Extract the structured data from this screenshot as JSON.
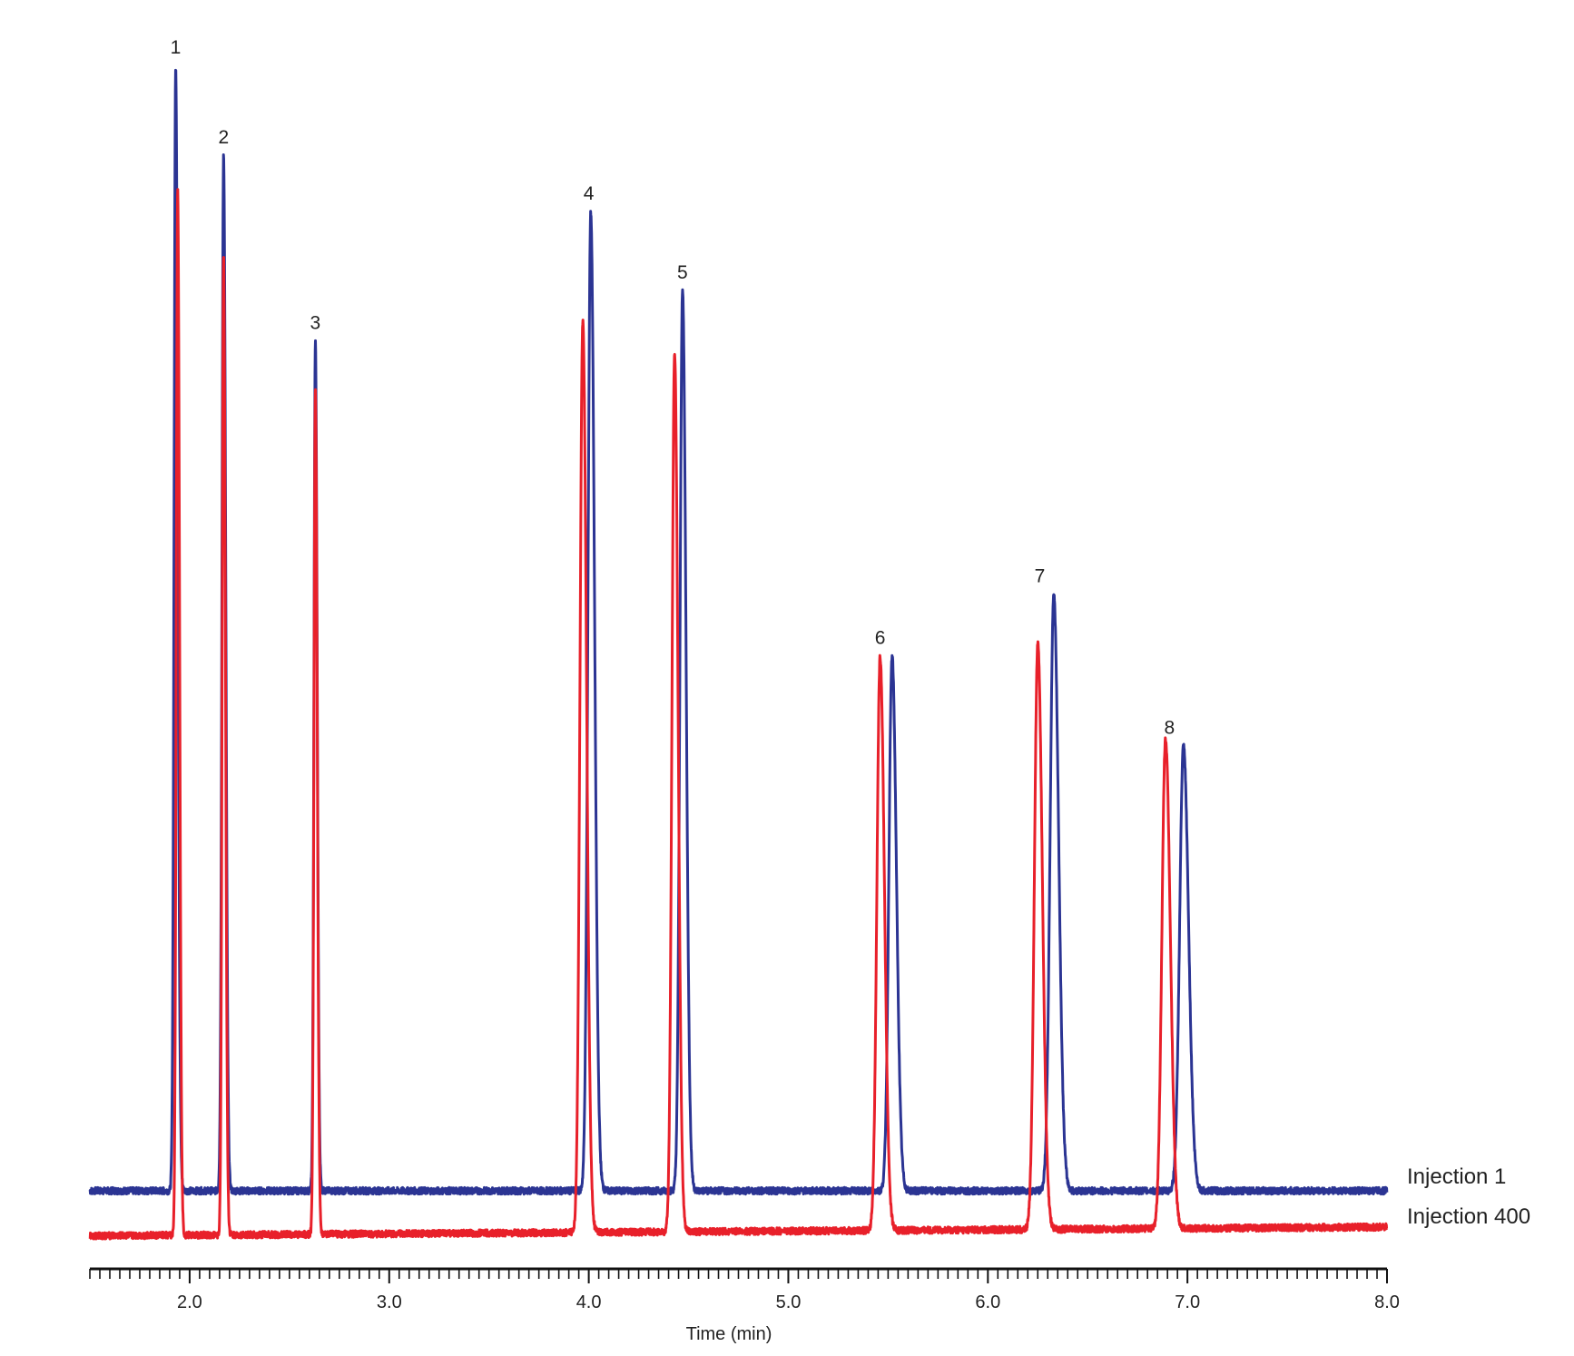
{
  "chart_data": {
    "type": "line",
    "xlabel": "Time (min)",
    "ylabel": "",
    "xlim": [
      1.5,
      8.0
    ],
    "x_ticks": [
      "2.0",
      "3.0",
      "4.0",
      "5.0",
      "6.0",
      "7.0",
      "8.0"
    ],
    "grid": false,
    "legend_position": "right, beside trace ends",
    "series": [
      {
        "name": "Injection 1",
        "color": "#2b3493",
        "baseline": 0.0,
        "peaks": [
          {
            "label": "1",
            "time": 1.93,
            "height": 1.0,
            "width": 0.008
          },
          {
            "label": "2",
            "time": 2.17,
            "height": 0.92,
            "width": 0.008
          },
          {
            "label": "3",
            "time": 2.63,
            "height": 0.755,
            "width": 0.007
          },
          {
            "label": "4",
            "time": 4.01,
            "height": 0.87,
            "width": 0.014
          },
          {
            "label": "5",
            "time": 4.47,
            "height": 0.8,
            "width": 0.013
          },
          {
            "label": "6",
            "time": 5.52,
            "height": 0.475,
            "width": 0.016
          },
          {
            "label": "7",
            "time": 6.33,
            "height": 0.53,
            "width": 0.018
          },
          {
            "label": "8",
            "time": 6.98,
            "height": 0.395,
            "width": 0.019
          }
        ]
      },
      {
        "name": "Injection 400",
        "color": "#e8202a",
        "baseline": -0.04,
        "peaks": [
          {
            "label": "1",
            "time": 1.94,
            "height": 0.93,
            "width": 0.007
          },
          {
            "label": "2",
            "time": 2.17,
            "height": 0.87,
            "width": 0.007
          },
          {
            "label": "3",
            "time": 2.63,
            "height": 0.75,
            "width": 0.007
          },
          {
            "label": "4",
            "time": 3.97,
            "height": 0.81,
            "width": 0.014
          },
          {
            "label": "5",
            "time": 4.43,
            "height": 0.78,
            "width": 0.013
          },
          {
            "label": "6",
            "time": 5.46,
            "height": 0.51,
            "width": 0.016
          },
          {
            "label": "7",
            "time": 6.25,
            "height": 0.52,
            "width": 0.017
          },
          {
            "label": "8",
            "time": 6.89,
            "height": 0.435,
            "width": 0.018
          }
        ]
      }
    ],
    "peak_labels": [
      {
        "text": "1",
        "time": 1.93
      },
      {
        "text": "2",
        "time": 2.17
      },
      {
        "text": "3",
        "time": 2.63
      },
      {
        "text": "4",
        "time": 4.0
      },
      {
        "text": "5",
        "time": 4.47
      },
      {
        "text": "6",
        "time": 5.46
      },
      {
        "text": "7",
        "time": 6.26
      },
      {
        "text": "8",
        "time": 6.91
      }
    ]
  }
}
